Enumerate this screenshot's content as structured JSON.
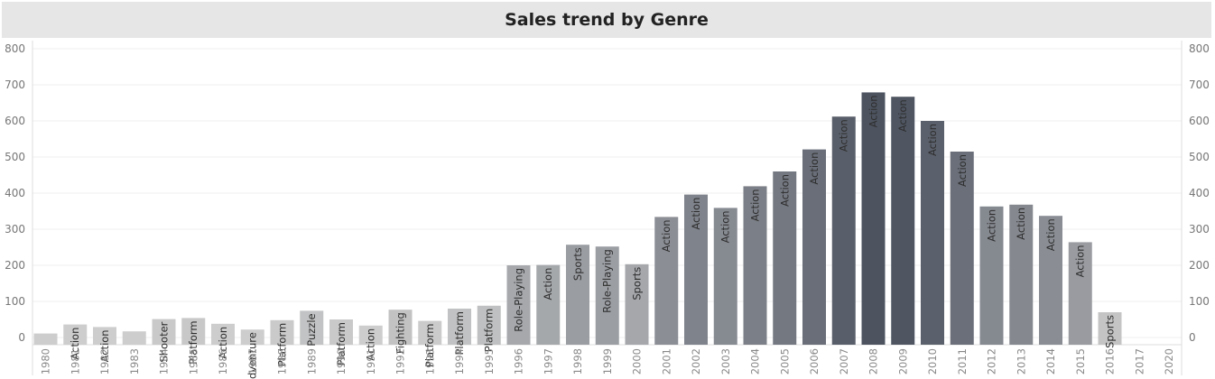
{
  "chart_data": {
    "type": "bar",
    "title": "Sales trend by Genre",
    "xlabel": "",
    "ylabel": "",
    "ylim": [
      0,
      800
    ],
    "yticks": [
      0,
      100,
      200,
      300,
      400,
      500,
      600,
      700,
      800
    ],
    "grid": true,
    "categories": [
      "1980",
      "1981",
      "1982",
      "1983",
      "1984",
      "1985",
      "1986",
      "1987",
      "1988",
      "1989",
      "1990",
      "1991",
      "1992",
      "1993",
      "1994",
      "1995",
      "1996",
      "1997",
      "1998",
      "1999",
      "2000",
      "2001",
      "2002",
      "2003",
      "2004",
      "2005",
      "2006",
      "2007",
      "2008",
      "2009",
      "2010",
      "2011",
      "2012",
      "2013",
      "2014",
      "2015",
      "2016",
      "2017",
      "2020"
    ],
    "values": [
      11,
      36,
      29,
      17,
      51,
      54,
      38,
      22,
      48,
      74,
      50,
      33,
      77,
      46,
      80,
      88,
      200,
      201,
      257,
      252,
      203,
      334,
      396,
      359,
      419,
      460,
      521,
      612,
      679,
      667,
      600,
      515,
      363,
      368,
      337,
      264,
      70,
      0,
      0
    ],
    "labels": [
      "",
      "Action",
      "Action",
      "",
      "Shooter",
      "Platform",
      "Action",
      "Adventure",
      "Platform",
      "Puzzle",
      "Platform",
      "Action",
      "Fighting",
      "Platform",
      "Platform",
      "Platform",
      "Role-Playing",
      "Action",
      "Sports",
      "Role-Playing",
      "Sports",
      "Action",
      "Action",
      "Action",
      "Action",
      "Action",
      "Action",
      "Action",
      "Action",
      "Action",
      "Action",
      "Action",
      "Action",
      "Action",
      "Action",
      "Action",
      "Sports",
      "",
      ""
    ]
  }
}
